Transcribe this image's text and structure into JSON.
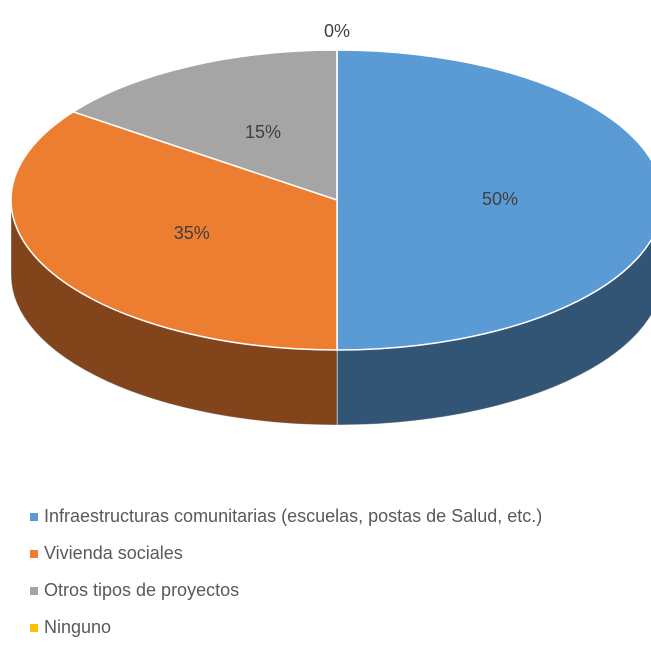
{
  "chart_data": {
    "type": "pie",
    "categories": [
      "Infraestructuras comunitarias (escuelas, postas de Salud, etc.)",
      "Vivienda sociales",
      "Otros tipos de proyectos",
      "Ninguno"
    ],
    "values": [
      50,
      35,
      15,
      0
    ],
    "value_labels": [
      "50%",
      "35%",
      "15%",
      "0%"
    ],
    "colors": [
      "#5b9bd5",
      "#ed7d31",
      "#a5a5a5",
      "#ffc000"
    ]
  }
}
